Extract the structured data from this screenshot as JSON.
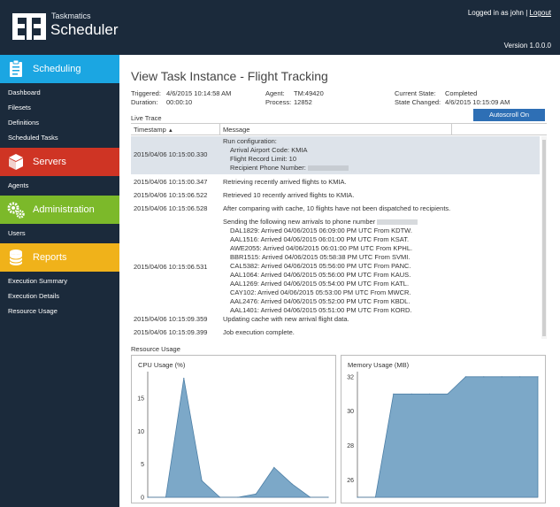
{
  "app": {
    "brand_small": "Taskmatics",
    "brand_big": "Scheduler",
    "logged_in_text": "Logged in as john",
    "logout_label": "Logout",
    "version": "Version 1.0.0.0"
  },
  "sidebar": {
    "scheduling": {
      "title": "Scheduling",
      "icon": "clipboard-icon",
      "items": [
        "Dashboard",
        "Filesets",
        "Definitions",
        "Scheduled Tasks"
      ]
    },
    "servers": {
      "title": "Servers",
      "icon": "server-icon",
      "items": [
        "Agents"
      ]
    },
    "administration": {
      "title": "Administration",
      "icon": "gears-icon",
      "items": [
        "Users"
      ]
    },
    "reports": {
      "title": "Reports",
      "icon": "database-icon",
      "items": [
        "Execution Summary",
        "Execution Details",
        "Resource Usage"
      ]
    }
  },
  "page": {
    "title": "View Task Instance - Flight Tracking",
    "triggered_label": "Triggered:",
    "triggered_value": "4/6/2015 10:14:58 AM",
    "duration_label": "Duration:",
    "duration_value": "00:00:10",
    "agent_label": "Agent:",
    "agent_value": "TM:49420",
    "process_label": "Process:",
    "process_value": "12852",
    "state_label": "Current State:",
    "state_value": "Completed",
    "changed_label": "State Changed:",
    "changed_value": "4/6/2015 10:15:09 AM",
    "autoscroll_label": "Autoscroll On",
    "live_trace_label": "Live Trace",
    "resource_label": "Resource Usage"
  },
  "trace": {
    "col_timestamp": "Timestamp",
    "col_message": "Message",
    "rows": [
      {
        "timestamp": "2015/04/06 10:15:00.330",
        "lines": [
          "Run configuration:",
          "Arrival Airport Code: KMIA",
          "Flight Record Limit: 10",
          "Recipient Phone Number: "
        ]
      },
      {
        "timestamp": "2015/04/06 10:15:00.347",
        "lines": [
          "Retrieving recently arrived flights to KMIA."
        ]
      },
      {
        "timestamp": "2015/04/06 10:15:06.522",
        "lines": [
          "Retrieved 10 recently arrived flights to KMIA."
        ]
      },
      {
        "timestamp": "2015/04/06 10:15:06.528",
        "lines": [
          "After comparing with cache, 10 flights have not been dispatched to recipients."
        ]
      },
      {
        "timestamp": "2015/04/06 10:15:06.531",
        "lines": [
          "Sending the following new arrivals to phone number ",
          "DAL1829: Arrived 04/06/2015 06:09:00 PM UTC From KDTW.",
          "AAL1516: Arrived 04/06/2015 06:01:00 PM UTC From KSAT.",
          "AWE2055: Arrived 04/06/2015 06:01:00 PM UTC From KPHL.",
          "BBR1515: Arrived 04/06/2015 05:58:38 PM UTC From SVMI.",
          "CAL5382: Arrived 04/06/2015 05:56:00 PM UTC From PANC.",
          "AAL1064: Arrived 04/06/2015 05:56:00 PM UTC From KAUS.",
          "AAL1269: Arrived 04/06/2015 05:54:00 PM UTC From KATL.",
          "CAY102: Arrived 04/06/2015 05:53:00 PM UTC From MWCR.",
          "AAL2476: Arrived 04/06/2015 05:52:00 PM UTC From KBDL.",
          "AAL1401: Arrived 04/06/2015 05:51:00 PM UTC From KORD."
        ]
      },
      {
        "timestamp": "2015/04/06 10:15:09.359",
        "lines": [
          "Updating cache with new arrival flight data."
        ]
      },
      {
        "timestamp": "2015/04/06 10:15:09.399",
        "lines": [
          "Job execution complete."
        ]
      }
    ]
  },
  "chart_data": [
    {
      "type": "area",
      "title": "CPU Usage (%)",
      "x": [
        0,
        1,
        2,
        3,
        4,
        5,
        6,
        7,
        8,
        9,
        10
      ],
      "values": [
        0,
        0,
        18,
        2.5,
        0,
        0,
        0.5,
        4.5,
        2,
        0,
        0
      ],
      "yticks": [
        0,
        5,
        10,
        15
      ],
      "ylim": [
        0,
        19
      ],
      "color": "#7ca8c8"
    },
    {
      "type": "area",
      "title": "Memory Usage (MB)",
      "x": [
        0,
        1,
        2,
        3,
        4,
        5,
        6,
        7,
        8,
        9,
        10
      ],
      "values": [
        25,
        25,
        31,
        31,
        31,
        31,
        32,
        32,
        32,
        32,
        32
      ],
      "yticks": [
        26,
        28,
        30,
        32
      ],
      "ylim": [
        25,
        32.3
      ],
      "color": "#7ca8c8"
    }
  ],
  "colors": {
    "sidebar_bg": "#1b2a3b",
    "scheduling": "#1ba6e2",
    "servers": "#cf3424",
    "administration": "#7cb92a",
    "reports": "#f0b21a",
    "accent_button": "#2e6fb5",
    "selected_row": "#dde3ea"
  }
}
